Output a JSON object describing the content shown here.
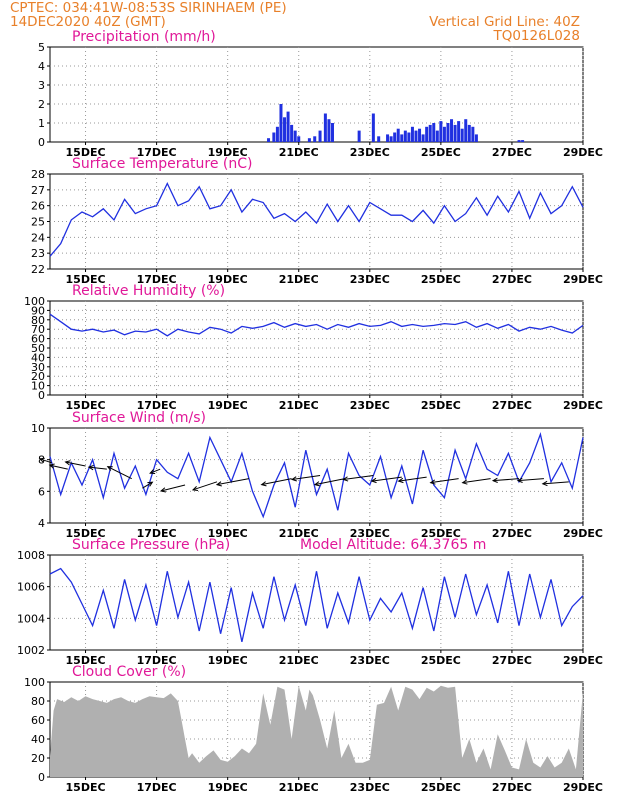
{
  "header": {
    "line1": "CPTEC:   034:41W-08:53S   SIRINHAEM (PE)",
    "line2": "14DEC2020 40Z (GMT)",
    "vgrid": "Vertical Grid Line: 40Z",
    "code": "TQ0126L028"
  },
  "colors": {
    "series": "#2030e0",
    "cloud": "#b0b0b0",
    "title": "#e01898",
    "header": "#e8802a",
    "grid": "#999999"
  },
  "x_axis": {
    "range_days": [
      14.0,
      29.0
    ],
    "ticks": [
      {
        "day": 15,
        "label": "15DEC"
      },
      {
        "day": 17,
        "label": "17DEC"
      },
      {
        "day": 19,
        "label": "19DEC"
      },
      {
        "day": 21,
        "label": "21DEC"
      },
      {
        "day": 23,
        "label": "23DEC"
      },
      {
        "day": 25,
        "label": "25DEC"
      },
      {
        "day": 27,
        "label": "27DEC"
      },
      {
        "day": 29,
        "label": "29DEC"
      }
    ]
  },
  "chart_data": [
    {
      "type": "bar",
      "title": "Precipitation (mm/h)",
      "ylim": [
        0,
        5
      ],
      "yticks": [
        "0",
        "1",
        "2",
        "3",
        "4",
        "5"
      ],
      "x": [
        20.15,
        20.3,
        20.4,
        20.5,
        20.6,
        20.7,
        20.8,
        20.9,
        21.0,
        21.3,
        21.45,
        21.6,
        21.75,
        21.85,
        21.95,
        22.7,
        23.1,
        23.25,
        23.5,
        23.6,
        23.7,
        23.8,
        23.9,
        24.0,
        24.1,
        24.2,
        24.3,
        24.4,
        24.5,
        24.6,
        24.7,
        24.8,
        24.9,
        25.0,
        25.1,
        25.2,
        25.3,
        25.4,
        25.5,
        25.6,
        25.7,
        25.8,
        25.9,
        26.0,
        27.2,
        27.3
      ],
      "values": [
        0.2,
        0.5,
        0.8,
        2.0,
        1.3,
        1.6,
        0.9,
        0.6,
        0.3,
        0.2,
        0.3,
        0.6,
        1.5,
        1.2,
        1.0,
        0.6,
        1.5,
        0.3,
        0.4,
        0.3,
        0.5,
        0.7,
        0.4,
        0.6,
        0.5,
        0.8,
        0.6,
        0.7,
        0.4,
        0.8,
        0.9,
        1.0,
        0.6,
        1.1,
        0.8,
        1.0,
        1.2,
        0.9,
        1.1,
        0.7,
        1.2,
        0.9,
        0.8,
        0.4,
        0.1,
        0.1
      ]
    },
    {
      "type": "line",
      "title": "Surface Temperature (nC)",
      "ylim": [
        22,
        28
      ],
      "yticks": [
        "22",
        "23",
        "24",
        "25",
        "26",
        "27",
        "28"
      ],
      "x": [
        14.0,
        14.3,
        14.6,
        14.9,
        15.2,
        15.5,
        15.8,
        16.1,
        16.4,
        16.7,
        17.0,
        17.3,
        17.6,
        17.9,
        18.2,
        18.5,
        18.8,
        19.1,
        19.4,
        19.7,
        20.0,
        20.3,
        20.6,
        20.9,
        21.2,
        21.5,
        21.8,
        22.1,
        22.4,
        22.7,
        23.0,
        23.3,
        23.6,
        23.9,
        24.2,
        24.5,
        24.8,
        25.1,
        25.4,
        25.7,
        26.0,
        26.3,
        26.6,
        26.9,
        27.2,
        27.5,
        27.8,
        28.1,
        28.4,
        28.7,
        29.0
      ],
      "values": [
        22.8,
        23.6,
        25.1,
        25.6,
        25.3,
        25.8,
        25.1,
        26.4,
        25.5,
        25.8,
        26.0,
        27.4,
        26.0,
        26.3,
        27.2,
        25.8,
        26.0,
        27.0,
        25.6,
        26.4,
        26.2,
        25.2,
        25.5,
        25.0,
        25.6,
        24.9,
        26.1,
        25.0,
        26.0,
        25.0,
        26.2,
        25.8,
        25.4,
        25.4,
        25.0,
        25.7,
        24.9,
        26.0,
        25.0,
        25.5,
        26.5,
        25.4,
        26.6,
        25.6,
        26.9,
        25.2,
        26.8,
        25.5,
        26.0,
        27.2,
        25.9
      ]
    },
    {
      "type": "line",
      "title": "Relative Humidity (%)",
      "ylim": [
        0,
        100
      ],
      "yticks": [
        "0",
        "10",
        "20",
        "30",
        "40",
        "50",
        "60",
        "70",
        "80",
        "90",
        "100"
      ],
      "x": [
        14.0,
        14.3,
        14.6,
        14.9,
        15.2,
        15.5,
        15.8,
        16.1,
        16.4,
        16.7,
        17.0,
        17.3,
        17.6,
        17.9,
        18.2,
        18.5,
        18.8,
        19.1,
        19.4,
        19.7,
        20.0,
        20.3,
        20.6,
        20.9,
        21.2,
        21.5,
        21.8,
        22.1,
        22.4,
        22.7,
        23.0,
        23.3,
        23.6,
        23.9,
        24.2,
        24.5,
        24.8,
        25.1,
        25.4,
        25.7,
        26.0,
        26.3,
        26.6,
        26.9,
        27.2,
        27.5,
        27.8,
        28.1,
        28.4,
        28.7,
        29.0
      ],
      "values": [
        86,
        78,
        70,
        68,
        70,
        67,
        69,
        64,
        68,
        67,
        70,
        63,
        70,
        67,
        65,
        72,
        70,
        66,
        73,
        71,
        73,
        77,
        72,
        76,
        73,
        75,
        70,
        75,
        72,
        76,
        73,
        74,
        78,
        73,
        75,
        73,
        74,
        76,
        75,
        78,
        72,
        76,
        71,
        75,
        68,
        72,
        70,
        73,
        69,
        66,
        74
      ]
    },
    {
      "type": "line",
      "title": "Surface Wind (m/s)",
      "ylim": [
        4,
        10
      ],
      "yticks": [
        "4",
        "6",
        "8",
        "10"
      ],
      "x": [
        14.0,
        14.3,
        14.6,
        14.9,
        15.2,
        15.5,
        15.8,
        16.1,
        16.4,
        16.7,
        17.0,
        17.3,
        17.6,
        17.9,
        18.2,
        18.5,
        18.8,
        19.1,
        19.4,
        19.7,
        20.0,
        20.3,
        20.6,
        20.9,
        21.2,
        21.5,
        21.8,
        22.1,
        22.4,
        22.7,
        23.0,
        23.3,
        23.6,
        23.9,
        24.2,
        24.5,
        24.8,
        25.1,
        25.4,
        25.7,
        26.0,
        26.3,
        26.6,
        26.9,
        27.2,
        27.5,
        27.8,
        28.1,
        28.4,
        28.7,
        29.0
      ],
      "values": [
        8.2,
        5.8,
        7.8,
        6.4,
        8.0,
        5.6,
        8.4,
        6.2,
        7.6,
        5.8,
        8.0,
        7.2,
        6.8,
        8.4,
        6.6,
        9.4,
        8.0,
        6.6,
        8.4,
        6.0,
        4.4,
        6.4,
        7.8,
        5.0,
        8.6,
        5.8,
        7.4,
        4.8,
        8.4,
        7.0,
        6.4,
        8.2,
        5.6,
        7.6,
        5.2,
        8.6,
        6.4,
        5.6,
        8.6,
        6.8,
        9.0,
        7.4,
        7.0,
        8.4,
        6.6,
        7.8,
        9.6,
        6.6,
        7.8,
        6.2,
        9.4
      ],
      "wind_vectors": [
        {
          "x": 14.05,
          "y": 7.8,
          "dx": -12,
          "dy": -4
        },
        {
          "x": 14.5,
          "y": 7.4,
          "dx": -18,
          "dy": -4
        },
        {
          "x": 15.0,
          "y": 7.6,
          "dx": -20,
          "dy": -4
        },
        {
          "x": 15.6,
          "y": 7.4,
          "dx": -18,
          "dy": -2
        },
        {
          "x": 16.3,
          "y": 6.8,
          "dx": -24,
          "dy": -12
        },
        {
          "x": 16.6,
          "y": 6.2,
          "dx": 10,
          "dy": -6
        },
        {
          "x": 17.1,
          "y": 7.4,
          "dx": -10,
          "dy": 4
        },
        {
          "x": 17.8,
          "y": 6.4,
          "dx": -24,
          "dy": 6
        },
        {
          "x": 18.7,
          "y": 6.6,
          "dx": -24,
          "dy": 8
        },
        {
          "x": 19.6,
          "y": 6.8,
          "dx": -32,
          "dy": 6
        },
        {
          "x": 20.8,
          "y": 6.8,
          "dx": -30,
          "dy": 6
        },
        {
          "x": 21.6,
          "y": 7.0,
          "dx": -28,
          "dy": 4
        },
        {
          "x": 22.3,
          "y": 6.8,
          "dx": -30,
          "dy": 6
        },
        {
          "x": 23.1,
          "y": 7.0,
          "dx": -30,
          "dy": 4
        },
        {
          "x": 23.9,
          "y": 6.9,
          "dx": -30,
          "dy": 4
        },
        {
          "x": 24.6,
          "y": 6.9,
          "dx": -28,
          "dy": 4
        },
        {
          "x": 25.5,
          "y": 6.8,
          "dx": -28,
          "dy": 4
        },
        {
          "x": 26.4,
          "y": 6.8,
          "dx": -28,
          "dy": 4
        },
        {
          "x": 27.2,
          "y": 6.8,
          "dx": -26,
          "dy": 2
        },
        {
          "x": 27.9,
          "y": 6.8,
          "dx": -26,
          "dy": 2
        },
        {
          "x": 28.6,
          "y": 6.6,
          "dx": -26,
          "dy": 2
        }
      ]
    },
    {
      "type": "line",
      "title": "Surface Pressure (hPa)",
      "annotation": "Model Altitude: 64.3765 m",
      "ylim": [
        1001,
        1008
      ],
      "yticks": [
        "1002",
        "1004",
        "1006",
        "1008"
      ],
      "x": [
        14.0,
        14.3,
        14.6,
        14.9,
        15.2,
        15.5,
        15.8,
        16.1,
        16.4,
        16.7,
        17.0,
        17.3,
        17.6,
        17.9,
        18.2,
        18.5,
        18.8,
        19.1,
        19.4,
        19.7,
        20.0,
        20.3,
        20.6,
        20.9,
        21.2,
        21.5,
        21.8,
        22.1,
        22.4,
        22.7,
        23.0,
        23.3,
        23.6,
        23.9,
        24.2,
        24.5,
        24.8,
        25.1,
        25.4,
        25.7,
        26.0,
        26.3,
        26.6,
        26.9,
        27.2,
        27.5,
        27.8,
        28.1,
        28.4,
        28.7,
        29.0
      ],
      "values": [
        1006.6,
        1007.0,
        1006.0,
        1004.4,
        1002.8,
        1005.4,
        1002.6,
        1006.2,
        1003.2,
        1005.8,
        1002.8,
        1006.8,
        1003.4,
        1006.0,
        1002.4,
        1006.0,
        1002.2,
        1005.6,
        1001.6,
        1005.2,
        1002.6,
        1006.4,
        1003.2,
        1005.8,
        1002.8,
        1006.8,
        1002.6,
        1005.2,
        1003.0,
        1006.4,
        1003.2,
        1004.8,
        1003.8,
        1005.2,
        1002.6,
        1005.6,
        1002.4,
        1006.4,
        1003.4,
        1006.6,
        1003.6,
        1005.8,
        1003.0,
        1006.8,
        1002.8,
        1006.6,
        1003.4,
        1006.2,
        1002.8,
        1004.2,
        1005.0
      ]
    },
    {
      "type": "area",
      "title": "Cloud Cover (%)",
      "ylim": [
        0,
        100
      ],
      "yticks": [
        "0",
        "20",
        "40",
        "60",
        "80",
        "100"
      ],
      "x": [
        14.0,
        14.1,
        14.2,
        14.4,
        14.6,
        14.8,
        15.0,
        15.2,
        15.4,
        15.6,
        15.8,
        16.0,
        16.2,
        16.4,
        16.6,
        16.8,
        17.0,
        17.2,
        17.4,
        17.6,
        17.7,
        17.8,
        17.9,
        18.0,
        18.2,
        18.4,
        18.6,
        18.8,
        19.0,
        19.2,
        19.4,
        19.6,
        19.8,
        20.0,
        20.2,
        20.4,
        20.6,
        20.8,
        21.0,
        21.2,
        21.3,
        21.4,
        21.6,
        21.8,
        22.0,
        22.2,
        22.4,
        22.6,
        22.8,
        23.0,
        23.2,
        23.4,
        23.6,
        23.8,
        24.0,
        24.2,
        24.4,
        24.6,
        24.8,
        25.0,
        25.2,
        25.4,
        25.6,
        25.8,
        26.0,
        26.2,
        26.4,
        26.6,
        26.8,
        27.0,
        27.2,
        27.4,
        27.6,
        27.8,
        28.0,
        28.2,
        28.4,
        28.6,
        28.8,
        29.0
      ],
      "values": [
        22,
        70,
        82,
        79,
        84,
        80,
        85,
        82,
        80,
        78,
        82,
        84,
        80,
        78,
        82,
        85,
        84,
        83,
        88,
        80,
        60,
        40,
        20,
        25,
        15,
        22,
        28,
        18,
        16,
        22,
        30,
        25,
        35,
        88,
        55,
        95,
        92,
        40,
        96,
        70,
        92,
        86,
        60,
        30,
        70,
        20,
        35,
        15,
        15,
        18,
        76,
        78,
        95,
        70,
        95,
        92,
        82,
        94,
        90,
        96,
        94,
        95,
        20,
        40,
        15,
        30,
        8,
        45,
        28,
        10,
        8,
        40,
        15,
        10,
        22,
        10,
        15,
        30,
        8,
        90
      ]
    }
  ]
}
